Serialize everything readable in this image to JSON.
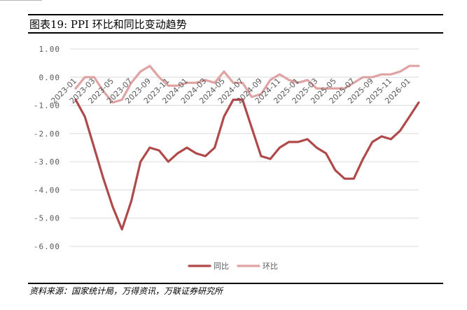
{
  "title": "图表19:  PPI 环比和同比变动趋势",
  "source": "资料来源：国家统计局，万得资讯，万联证券研究所",
  "colors": {
    "yoy": "#b04a4a",
    "mom": "#e0a3a3",
    "grid": "#d9d9d9",
    "axis_text": "#595959"
  },
  "chart_data": {
    "type": "line",
    "title": "",
    "xlabel": "",
    "ylabel": "",
    "ylim": [
      -6,
      1
    ],
    "yticks": [
      1,
      0,
      -1,
      -2,
      -3,
      -4,
      -5,
      -6
    ],
    "ytick_labels": [
      "1.00",
      "0.00",
      "-1.00",
      "-2.00",
      "-3.00",
      "-4.00",
      "-5.00",
      "-6.00"
    ],
    "grid": true,
    "legend_position": "bottom-center",
    "x": [
      "2023-01",
      "2023-02",
      "2023-03",
      "2023-04",
      "2023-05",
      "2023-06",
      "2023-07",
      "2023-08",
      "2023-09",
      "2023-10",
      "2023-11",
      "2023-12",
      "2024-01",
      "2024-02",
      "2024-03",
      "2024-04",
      "2024-05",
      "2024-06",
      "2024-07",
      "2024-08",
      "2024-09",
      "2024-10",
      "2024-11",
      "2024-12",
      "2025-01",
      "2025-02",
      "2025-03",
      "2025-04",
      "2025-05",
      "2025-06",
      "2025-07",
      "2025-08",
      "2025-09",
      "2025-10",
      "2025-11",
      "2025-12",
      "2026-01",
      "2026-02"
    ],
    "xtick_labels": [
      "2023-01",
      "2023-03",
      "2023-05",
      "2023-07",
      "2023-09",
      "2023-11",
      "2024-01",
      "2024-03",
      "2024-05",
      "2024-07",
      "2024-09",
      "2024-11",
      "2025-01",
      "2025-03",
      "2025-05",
      "2025-07",
      "2025-09",
      "2025-11",
      "2026-01"
    ],
    "series": [
      {
        "name": "同比",
        "values": [
          -0.8,
          -1.4,
          -2.5,
          -3.6,
          -4.6,
          -5.4,
          -4.4,
          -3.0,
          -2.5,
          -2.6,
          -3.0,
          -2.7,
          -2.5,
          -2.7,
          -2.8,
          -2.5,
          -1.4,
          -0.8,
          -0.8,
          -1.8,
          -2.8,
          -2.9,
          -2.5,
          -2.3,
          -2.3,
          -2.2,
          -2.5,
          -2.7,
          -3.3,
          -3.6,
          -3.6,
          -2.9,
          -2.3,
          -2.1,
          -2.2,
          -1.9,
          -1.4,
          -0.9
        ]
      },
      {
        "name": "环比",
        "values": [
          -0.4,
          0.0,
          0.0,
          -0.5,
          -0.9,
          -0.8,
          -0.2,
          0.2,
          0.4,
          0.0,
          -0.3,
          -0.3,
          -0.2,
          -0.2,
          -0.1,
          -0.2,
          0.2,
          -0.2,
          -0.2,
          -0.7,
          -0.6,
          -0.1,
          0.1,
          -0.1,
          -0.2,
          -0.1,
          -0.4,
          -0.4,
          -0.4,
          -0.4,
          -0.2,
          0.0,
          0.0,
          0.1,
          0.1,
          0.2,
          0.4,
          0.4
        ]
      }
    ]
  }
}
